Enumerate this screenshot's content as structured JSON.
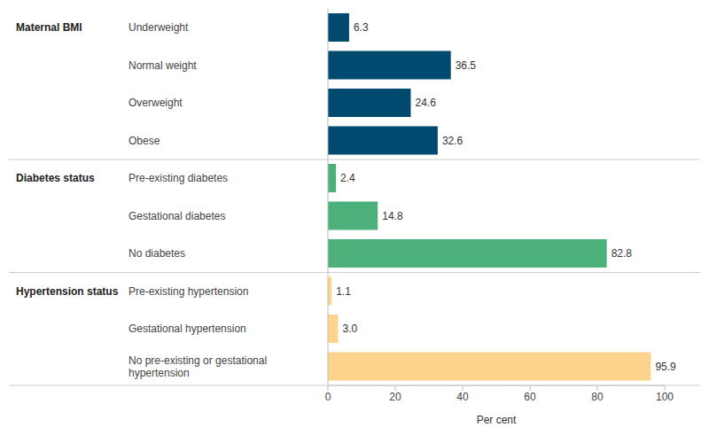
{
  "chart_data": {
    "type": "bar",
    "orientation": "horizontal",
    "x_label": "Per cent",
    "categories": [
      "Underweight",
      "Normal weight",
      "Overweight",
      "Obese",
      "Pre-existing diabetes",
      "Gestational diabetes",
      "No diabetes",
      "Pre-existing hypertension",
      "Gestational hypertension",
      "No pre-existing or gestational hypertension"
    ],
    "series": [
      {
        "name": "Maternal BMI",
        "color": "#00496f",
        "values": [
          6.3,
          36.5,
          24.6,
          32.6,
          null,
          null,
          null,
          null,
          null,
          null
        ],
        "value_labels": [
          "6.3",
          "36.5",
          "24.6",
          "32.6",
          null,
          null,
          null,
          null,
          null,
          null
        ]
      },
      {
        "name": "Diabetes status",
        "color": "#4bb07a",
        "values": [
          null,
          null,
          null,
          null,
          2.4,
          14.8,
          82.8,
          null,
          null,
          null
        ],
        "value_labels": [
          null,
          null,
          null,
          null,
          "2.4",
          "14.8",
          "82.8",
          null,
          null,
          null
        ]
      },
      {
        "name": "Hypertension status",
        "color": "#fed48c",
        "values": [
          null,
          null,
          null,
          null,
          null,
          null,
          null,
          1.1,
          3.0,
          95.9
        ],
        "value_labels": [
          null,
          null,
          null,
          null,
          null,
          null,
          null,
          "1.1",
          "3.0",
          "95.9"
        ]
      }
    ],
    "xlim": [
      0,
      100
    ],
    "xticks": [
      0,
      20,
      40,
      60,
      80,
      100
    ],
    "grid": false,
    "data_labels": true
  }
}
